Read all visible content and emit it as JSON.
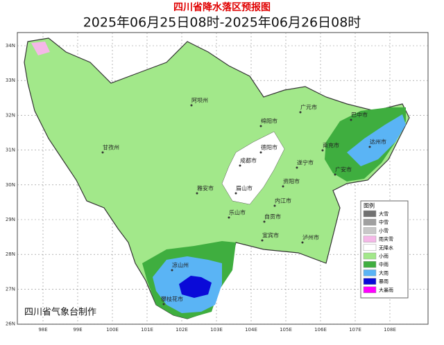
{
  "header": {
    "title": "四川省降水落区预报图",
    "subtitle": "2025年06月25日08时-2025年06月26日08时"
  },
  "lat_labels": [
    "34N",
    "33N",
    "32N",
    "31N",
    "30N",
    "29N",
    "28N",
    "27N",
    "26N"
  ],
  "lon_labels": [
    "98E",
    "99E",
    "100E",
    "101E",
    "102E",
    "103E",
    "104E",
    "105E",
    "106E",
    "107E",
    "108E"
  ],
  "cities": [
    "广元市",
    "巴中市",
    "阿坝州",
    "绵阳市",
    "达州市",
    "德阳市",
    "南充市",
    "甘孜州",
    "成都市",
    "遂宁市",
    "广安市",
    "资阳市",
    "雅安市",
    "眉山市",
    "内江市",
    "乐山市",
    "自贡市",
    "宜宾市",
    "泸州市",
    "凉山州",
    "攀枝花市"
  ],
  "legend": {
    "title": "图例",
    "items": [
      {
        "label": "大雪",
        "color": "#707070"
      },
      {
        "label": "中雪",
        "color": "#a0a0a0"
      },
      {
        "label": "小雪",
        "color": "#c8c8c8"
      },
      {
        "label": "雨夹雪",
        "color": "#f5b8e8"
      },
      {
        "label": "无降水",
        "color": "#ffffff"
      },
      {
        "label": "小雨",
        "color": "#a2e88a"
      },
      {
        "label": "中雨",
        "color": "#3fae3f"
      },
      {
        "label": "大雨",
        "color": "#5ab4f5"
      },
      {
        "label": "暴雨",
        "color": "#0a0ad8"
      },
      {
        "label": "大暴雨",
        "color": "#ff00ff"
      }
    ]
  },
  "footer": "四川省气象台制作"
}
